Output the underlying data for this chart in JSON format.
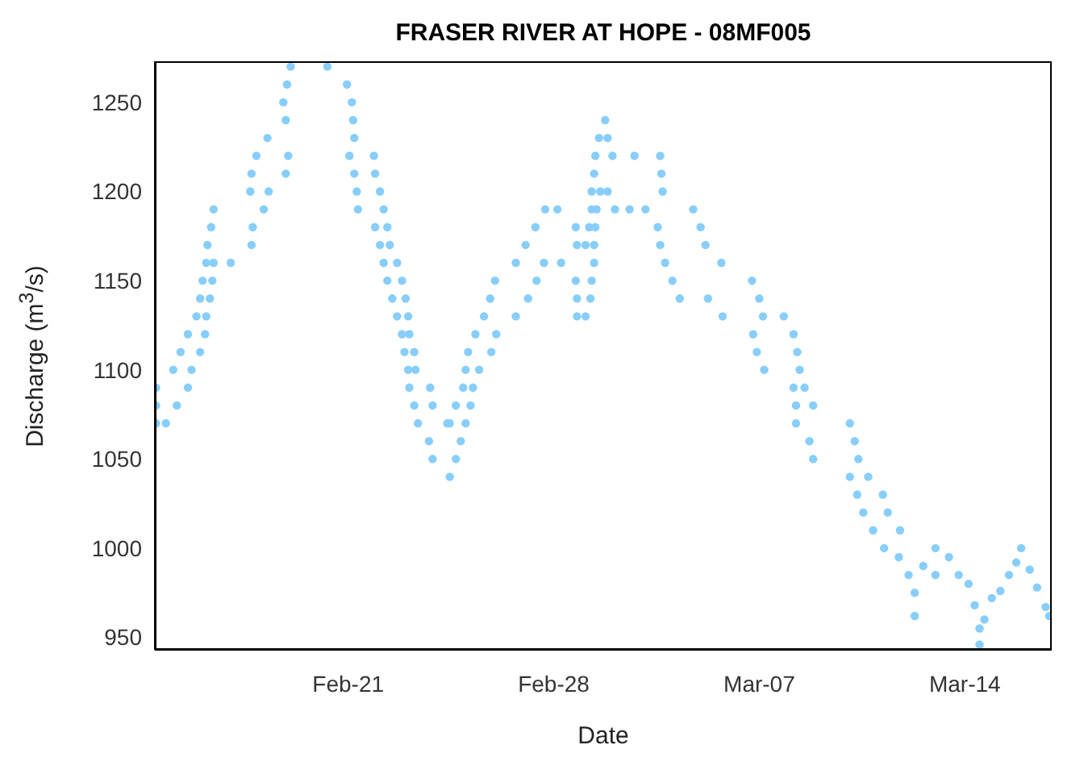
{
  "chart_data": {
    "type": "scatter",
    "title": "FRASER RIVER AT HOPE - 08MF005",
    "xlabel": "Date",
    "ylabel": "Discharge (m$^{3}$/s)",
    "xlim": [
      "--02-14T10:00",
      "--03-16T23:00"
    ],
    "xticks": [
      {
        "value": "--02-21",
        "label": "Feb-21"
      },
      {
        "value": "--02-28",
        "label": "Feb-28"
      },
      {
        "value": "--03-07",
        "label": "Mar-07"
      },
      {
        "value": "--03-14",
        "label": "Mar-14"
      }
    ],
    "ylim": [
      943,
      1273
    ],
    "yticks": [
      950,
      1000,
      1050,
      1100,
      1150,
      1200,
      1250
    ],
    "grid": false,
    "legend": false,
    "marker": "circle",
    "series": [
      {
        "color": "#87cefa",
        "x": [
          "--02-14T11:00",
          "--02-14T19:00",
          "--02-14T11:00",
          "--02-15T04:00",
          "--02-14T11:00",
          "--02-15T13:00",
          "--02-15T01:00",
          "--02-15T16:00",
          "--02-15T07:00",
          "--02-15T23:00",
          "--02-15T13:00",
          "--02-16T03:00",
          "--02-15T20:00",
          "--02-16T04:00",
          "--02-15T23:00",
          "--02-16T07:00",
          "--02-16T01:00",
          "--02-16T09:00",
          "--02-16T04:00",
          "--02-16T10:00",
          "--02-17T00:00",
          "--02-16T05:00",
          "--02-17T17:00",
          "--02-16T08:00",
          "--02-17T18:00",
          "--02-16T10:00",
          "--02-18T03:00",
          "--02-17T16:00",
          "--02-18T07:00",
          "--02-17T17:00",
          "--02-18T21:00",
          "--02-17T21:00",
          "--02-18T23:00",
          "--02-18T06:00",
          "--02-21T05:00",
          "--02-18T21:00",
          "--02-21T04:00",
          "--02-18T19:00",
          "--02-21T03:00",
          "--02-18T22:00",
          "--02-20T23:00",
          "--02-19T01:00",
          "--02-20T07:00",
          "--02-21T01:00",
          "--02-21T21:00",
          "--02-21T05:00",
          "--02-21T22:00",
          "--02-21T07:00",
          "--02-22T02:00",
          "--02-21T08:00",
          "--02-22T05:00",
          "--02-21T22:00",
          "--02-22T08:00",
          "--02-22T02:00",
          "--02-22T10:00",
          "--02-22T05:00",
          "--02-22T16:00",
          "--02-22T08:00",
          "--02-22T20:00",
          "--02-22T12:00",
          "--02-22T23:00",
          "--02-22T16:00",
          "--02-23T01:00",
          "--02-22T20:00",
          "--02-23T02:00",
          "--02-22T22:00",
          "--02-23T06:00",
          "--02-23T01:00",
          "--02-23T07:00",
          "--02-23T02:00",
          "--02-23T19:00",
          "--02-23T06:00",
          "--02-23T21:00",
          "--02-23T09:00",
          "--02-24T09:00",
          "--02-23T18:00",
          "--02-24T20:00",
          "--02-23T21:00",
          "--02-24T16:00",
          "--02-24T11:00",
          "--02-24T11:00",
          "--02-25T00:00",
          "--02-24T16:00",
          "--02-25T04:00",
          "--02-24T22:00",
          "--02-25T06:00",
          "--02-25T00:00",
          "--02-25T11:00",
          "--02-25T02:00",
          "--02-25T21:00",
          "--02-25T08:00",
          "--02-26T01:00",
          "--02-25T15:00",
          "--02-26T17:00",
          "--02-25T20:00",
          "--02-27T03:00",
          "--02-26T00:00",
          "--02-27T10:00",
          "--02-26T17:00",
          "--02-27T16:00",
          "--02-27T01:00",
          "--02-28T19:00",
          "--02-27T09:00",
          "--02-28T18:00",
          "--02-27T17:00",
          "--02-28T03:00",
          "--02-28T06:00",
          "--03-01T09:00",
          "--02-28T18:00",
          "--03-01T07:00",
          "--02-28T19:00",
          "--03-01T06:00",
          "--02-28T19:00",
          "--03-01T02:00",
          "--03-01T02:00",
          "--03-01T09:00",
          "--03-01T05:00",
          "--03-01T10:00",
          "--03-01T07:00",
          "--03-01T11:00",
          "--03-01T07:00",
          "--03-01T14:00",
          "--03-01T09:00",
          "--03-01T10:00",
          "--03-02T00:00",
          "--03-01T13:00",
          "--03-01T20:00",
          "--03-01T18:00",
          "--03-03T16:00",
          "--03-02T18:00",
          "--03-03T15:00",
          "--03-01T20:00",
          "--03-03T17:00",
          "--03-02T02:00",
          "--03-02T14:00",
          "--03-03T03:00",
          "--03-04T18:00",
          "--03-03T13:00",
          "--03-05T00:00",
          "--03-03T15:00",
          "--03-05T04:00",
          "--03-03T19:00",
          "--03-05T17:00",
          "--03-04T01:00",
          "--03-06T18:00",
          "--03-04T07:00",
          "--03-05T06:00",
          "--03-07T00:00",
          "--03-05T18:00",
          "--03-07T03:00",
          "--03-07T20:00",
          "--03-06T19:00",
          "--03-08T04:00",
          "--03-06T22:00",
          "--03-08T07:00",
          "--03-07T04:00",
          "--03-08T09:00",
          "--03-08T04:00",
          "--03-08T13:00",
          "--03-08T06:00",
          "--03-08T20:00",
          "--03-08T06:00",
          "--03-10T02:00",
          "--03-08T17:00",
          "--03-10T06:00",
          "--03-08T20:00",
          "--03-10T09:00",
          "--03-10T02:00",
          "--03-10T17:00",
          "--03-10T08:00",
          "--03-11T05:00",
          "--03-10T13:00",
          "--03-11T09:00",
          "--03-10T21:00",
          "--03-11T19:00",
          "--03-11T06:00",
          "--03-11T18:00",
          "--03-12T02:00",
          "--03-12T07:00",
          "--03-12T07:00",
          "--03-12T14:00",
          "--03-13T00:00",
          "--03-13T00:00",
          "--03-13T11:00",
          "--03-13T19:00",
          "--03-14T03:00",
          "--03-14T08:00",
          "--03-14T12:00",
          "--03-14T12:00",
          "--03-14T16:00",
          "--03-14T22:00",
          "--03-15T05:00",
          "--03-15T12:00",
          "--03-15T18:00",
          "--03-15T22:00",
          "--03-16T05:00",
          "--03-16T11:00",
          "--03-16T18:00",
          "--03-16T21:00"
        ],
        "values": [
          1070,
          1070,
          1080,
          1080,
          1090,
          1090,
          1100,
          1100,
          1110,
          1110,
          1120,
          1120,
          1130,
          1130,
          1140,
          1140,
          1150,
          1150,
          1160,
          1160,
          1160,
          1170,
          1170,
          1180,
          1180,
          1190,
          1190,
          1200,
          1200,
          1210,
          1210,
          1220,
          1220,
          1230,
          1230,
          1240,
          1240,
          1250,
          1250,
          1260,
          1260,
          1270,
          1270,
          1220,
          1220,
          1210,
          1210,
          1200,
          1200,
          1190,
          1190,
          1180,
          1180,
          1170,
          1170,
          1160,
          1160,
          1150,
          1150,
          1140,
          1140,
          1130,
          1130,
          1120,
          1120,
          1110,
          1110,
          1100,
          1100,
          1090,
          1090,
          1080,
          1080,
          1070,
          1070,
          1060,
          1060,
          1050,
          1050,
          1040,
          1070,
          1070,
          1080,
          1080,
          1090,
          1090,
          1100,
          1100,
          1110,
          1110,
          1120,
          1120,
          1130,
          1130,
          1140,
          1140,
          1150,
          1150,
          1160,
          1160,
          1170,
          1170,
          1180,
          1180,
          1190,
          1190,
          1160,
          1160,
          1150,
          1150,
          1140,
          1140,
          1130,
          1130,
          1170,
          1170,
          1180,
          1180,
          1190,
          1190,
          1200,
          1200,
          1210,
          1220,
          1220,
          1230,
          1230,
          1240,
          1210,
          1220,
          1220,
          1200,
          1200,
          1190,
          1190,
          1190,
          1190,
          1180,
          1180,
          1170,
          1170,
          1160,
          1160,
          1150,
          1150,
          1140,
          1140,
          1140,
          1130,
          1130,
          1130,
          1120,
          1120,
          1110,
          1110,
          1100,
          1100,
          1090,
          1090,
          1080,
          1080,
          1070,
          1070,
          1060,
          1060,
          1050,
          1050,
          1040,
          1040,
          1030,
          1030,
          1020,
          1020,
          1010,
          1010,
          1000,
          995,
          985,
          962,
          975,
          990,
          1000,
          985,
          995,
          985,
          980,
          968,
          955,
          946,
          960,
          972,
          976,
          985,
          992,
          1000,
          988,
          978,
          967,
          962
        ]
      }
    ]
  }
}
